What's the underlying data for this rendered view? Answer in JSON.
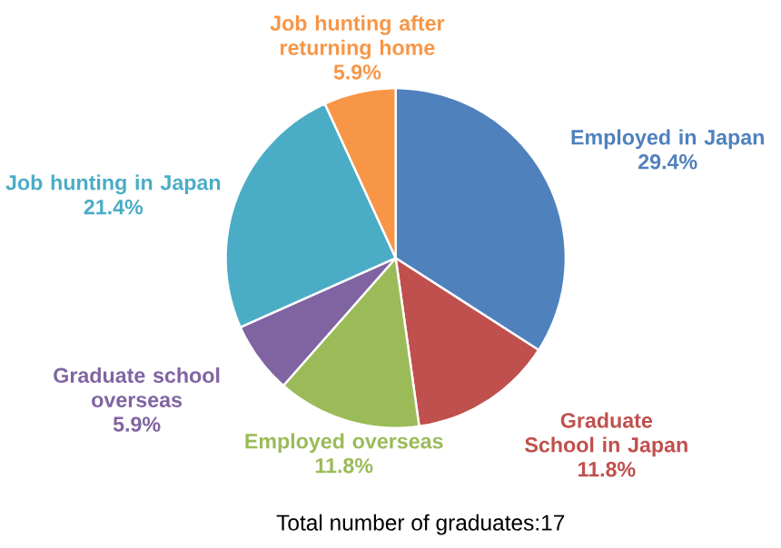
{
  "chart_data": {
    "type": "pie",
    "categories": [
      "Employed in Japan",
      "Graduate School in Japan",
      "Employed overseas",
      "Graduate school overseas",
      "Job hunting in Japan",
      "Job hunting after returning home"
    ],
    "values": [
      29.4,
      11.8,
      11.8,
      5.9,
      21.4,
      5.9
    ],
    "value_labels": [
      "29.4%",
      "11.8%",
      "11.8%",
      "5.9%",
      "21.4%",
      "5.9%"
    ],
    "colors": [
      "#4f81bd",
      "#c0504d",
      "#9bbb59",
      "#8064a2",
      "#4bacc6",
      "#f79646"
    ],
    "annotations": [
      "Total number of graduates:17"
    ]
  }
}
